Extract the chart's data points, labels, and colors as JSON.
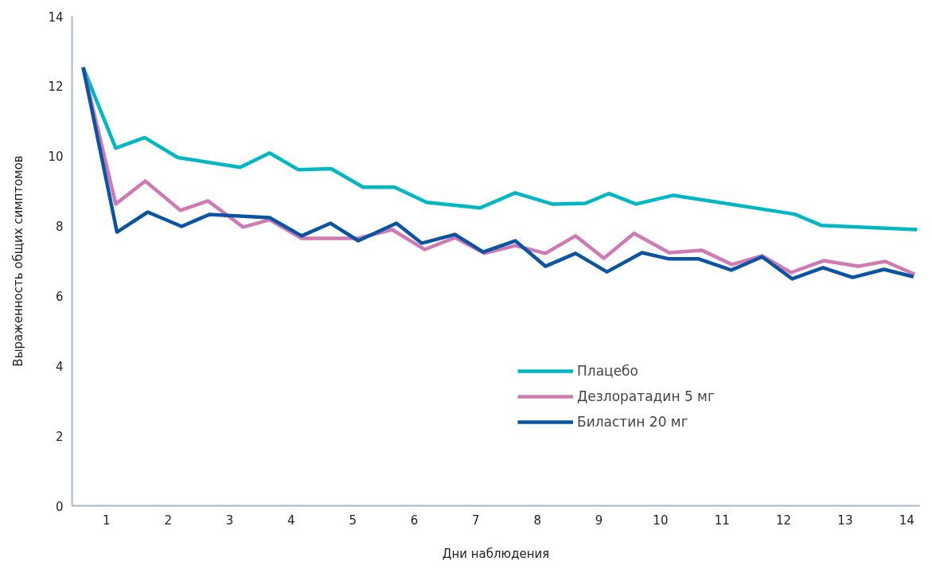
{
  "chart_data": {
    "type": "line",
    "xlabel": "Дни наблюдения",
    "ylabel": "Выраженность общих симптомов",
    "xlim": [
      0.44,
      14.21
    ],
    "xticks": [
      1,
      2,
      3,
      4,
      5,
      6,
      7,
      8,
      9,
      10,
      11,
      12,
      13,
      14
    ],
    "ylim": [
      0,
      14
    ],
    "yticks": [
      0,
      2,
      4,
      6,
      8,
      10,
      12,
      14
    ],
    "grid": false,
    "legend": "right",
    "line_style": "solid",
    "marker": "none",
    "series": [
      {
        "name": "Плацебо",
        "color": "#00b8c4",
        "x": [
          0.62,
          1.15,
          1.62,
          2.16,
          3.17,
          3.65,
          4.12,
          4.65,
          5.17,
          5.68,
          6.2,
          7.07,
          7.64,
          8.24,
          8.78,
          9.16,
          9.6,
          10.21,
          12.18,
          12.61,
          14.17
        ],
        "values": [
          12.54,
          10.23,
          10.53,
          9.96,
          9.68,
          10.09,
          9.61,
          9.64,
          9.11,
          9.11,
          8.68,
          8.52,
          8.95,
          8.63,
          8.65,
          8.93,
          8.63,
          8.88,
          8.34,
          8.02,
          7.9
        ]
      },
      {
        "name": "Дезлоратадин 5 мг",
        "color": "#d07ab4",
        "x": [
          0.62,
          1.15,
          1.63,
          2.2,
          2.65,
          3.22,
          3.65,
          4.17,
          5.09,
          5.64,
          6.17,
          6.66,
          7.14,
          7.64,
          8.13,
          8.62,
          9.08,
          9.57,
          10.14,
          10.67,
          11.16,
          11.65,
          12.12,
          12.65,
          13.21,
          13.65,
          14.13
        ],
        "values": [
          12.54,
          8.63,
          9.29,
          8.45,
          8.72,
          7.97,
          8.18,
          7.65,
          7.65,
          7.9,
          7.33,
          7.67,
          7.22,
          7.44,
          7.22,
          7.72,
          7.08,
          7.79,
          7.24,
          7.31,
          6.9,
          7.15,
          6.67,
          7.01,
          6.85,
          6.99,
          6.62
        ]
      },
      {
        "name": "Биластин 20 мг",
        "color": "#0a55a3",
        "x": [
          0.62,
          1.17,
          1.67,
          2.22,
          2.67,
          3.65,
          4.17,
          4.64,
          5.09,
          5.71,
          6.12,
          6.66,
          7.12,
          7.64,
          8.13,
          8.62,
          9.13,
          9.7,
          10.14,
          10.62,
          11.15,
          11.65,
          12.14,
          12.64,
          13.12,
          13.63,
          14.11
        ],
        "values": [
          12.54,
          7.83,
          8.4,
          7.99,
          8.33,
          8.24,
          7.72,
          8.08,
          7.58,
          8.08,
          7.51,
          7.76,
          7.26,
          7.58,
          6.85,
          7.22,
          6.69,
          7.24,
          7.06,
          7.06,
          6.74,
          7.12,
          6.49,
          6.81,
          6.53,
          6.76,
          6.55
        ]
      }
    ]
  }
}
